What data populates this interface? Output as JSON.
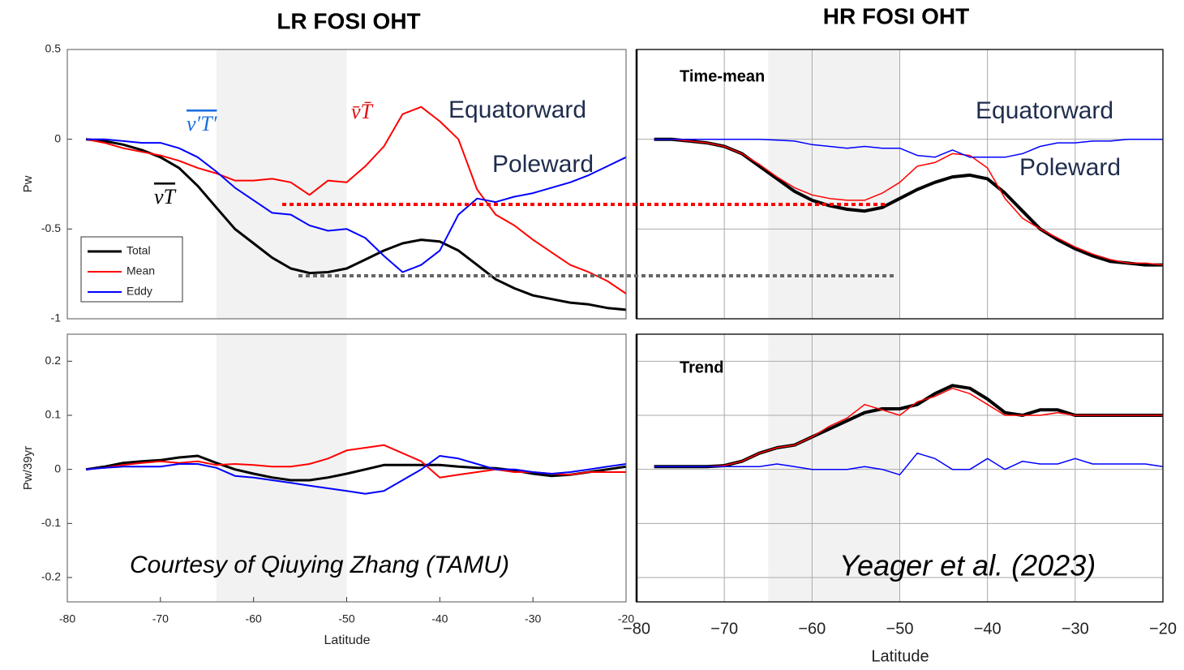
{
  "chart_data": [
    {
      "type": "line",
      "title": "LR FOSI OHT",
      "ylabel": "Pw",
      "x": [
        -78,
        -76,
        -74,
        -72,
        -70,
        -68,
        -66,
        -64,
        -62,
        -60,
        -58,
        -56,
        -54,
        -52,
        -50,
        -48,
        -46,
        -44,
        -42,
        -40,
        -38,
        -36,
        -34,
        -32,
        -30,
        -28,
        -26,
        -24,
        -22,
        -20
      ],
      "series": [
        {
          "name": "Total",
          "color": "#000000",
          "linewidth": 3,
          "values": [
            0,
            -0.01,
            -0.03,
            -0.06,
            -0.1,
            -0.16,
            -0.26,
            -0.38,
            -0.5,
            -0.58,
            -0.66,
            -0.72,
            -0.745,
            -0.74,
            -0.72,
            -0.67,
            -0.62,
            -0.58,
            -0.56,
            -0.57,
            -0.62,
            -0.7,
            -0.78,
            -0.83,
            -0.87,
            -0.89,
            -0.91,
            -0.92,
            -0.94,
            -0.95
          ]
        },
        {
          "name": "Mean",
          "color": "#ff0000",
          "linewidth": 2,
          "values": [
            0,
            -0.02,
            -0.05,
            -0.07,
            -0.09,
            -0.12,
            -0.16,
            -0.19,
            -0.23,
            -0.23,
            -0.22,
            -0.24,
            -0.31,
            -0.23,
            -0.24,
            -0.15,
            -0.04,
            0.14,
            0.18,
            0.1,
            0.0,
            -0.28,
            -0.42,
            -0.48,
            -0.56,
            -0.63,
            -0.7,
            -0.74,
            -0.79,
            -0.86
          ]
        },
        {
          "name": "Eddy",
          "color": "#0000ff",
          "linewidth": 2,
          "values": [
            0,
            0,
            -0.01,
            -0.02,
            -0.02,
            -0.05,
            -0.1,
            -0.18,
            -0.27,
            -0.34,
            -0.41,
            -0.42,
            -0.48,
            -0.51,
            -0.5,
            -0.55,
            -0.65,
            -0.74,
            -0.7,
            -0.62,
            -0.42,
            -0.33,
            -0.35,
            -0.32,
            -0.3,
            -0.27,
            -0.24,
            -0.2,
            -0.15,
            -0.1
          ]
        }
      ],
      "xlim": [
        -80,
        -20
      ],
      "ylim": [
        -1,
        0.5
      ],
      "yticks": [
        0.5,
        0,
        -0.5,
        -1
      ],
      "show_ytick_labels": true,
      "grid": false,
      "shaded_region": [
        -64,
        -50
      ],
      "legend": "lower left",
      "annotations": [
        {
          "text": "v′T′",
          "color": "#1a6fe0"
        },
        {
          "text": "v̄T̄",
          "color": "#e01010"
        },
        {
          "text": "vT",
          "color": "#000000"
        },
        {
          "text": "Equatorward",
          "color": "#1f2d4d"
        },
        {
          "text": "Poleward",
          "color": "#1f2d4d"
        }
      ]
    },
    {
      "type": "line",
      "ylabel": "Pw/39yr",
      "xlabel": "Latitude",
      "x": [
        -78,
        -76,
        -74,
        -72,
        -70,
        -68,
        -66,
        -64,
        -62,
        -60,
        -58,
        -56,
        -54,
        -52,
        -50,
        -48,
        -46,
        -44,
        -42,
        -40,
        -38,
        -36,
        -34,
        -32,
        -30,
        -28,
        -26,
        -24,
        -22,
        -20
      ],
      "series": [
        {
          "color": "#000000",
          "linewidth": 3,
          "values": [
            0,
            0.005,
            0.012,
            0.015,
            0.017,
            0.022,
            0.025,
            0.012,
            0.0,
            -0.008,
            -0.015,
            -0.02,
            -0.02,
            -0.015,
            -0.008,
            0.0,
            0.008,
            0.008,
            0.008,
            0.008,
            0.005,
            0.003,
            0.002,
            -0.002,
            -0.008,
            -0.012,
            -0.01,
            -0.005,
            0.0,
            0.005
          ]
        },
        {
          "color": "#ff0000",
          "linewidth": 2,
          "values": [
            0,
            0.003,
            0.008,
            0.012,
            0.015,
            0.012,
            0.015,
            0.008,
            0.01,
            0.008,
            0.005,
            0.005,
            0.01,
            0.02,
            0.035,
            0.04,
            0.045,
            0.03,
            0.015,
            -0.015,
            -0.01,
            -0.005,
            0.0,
            -0.005,
            -0.005,
            -0.008,
            -0.01,
            -0.005,
            -0.005,
            -0.005
          ]
        },
        {
          "color": "#0000ff",
          "linewidth": 2,
          "values": [
            0,
            0.003,
            0.005,
            0.005,
            0.005,
            0.01,
            0.01,
            0.003,
            -0.012,
            -0.015,
            -0.02,
            -0.025,
            -0.03,
            -0.035,
            -0.04,
            -0.045,
            -0.04,
            -0.02,
            0.0,
            0.025,
            0.02,
            0.01,
            0.0,
            0.0,
            -0.005,
            -0.008,
            -0.005,
            0.0,
            0.005,
            0.01
          ]
        }
      ],
      "xlim": [
        -80,
        -20
      ],
      "xticks": [
        -80,
        -70,
        -60,
        -50,
        -40,
        -30,
        -20
      ],
      "ylim": [
        -0.245,
        0.25
      ],
      "yticks": [
        0.2,
        0.1,
        0,
        -0.1,
        -0.2
      ],
      "show_ytick_labels": true,
      "grid": false,
      "shaded_region": [
        -64,
        -50
      ],
      "annotations": [
        {
          "text": "Courtesy of Qiuying Zhang (TAMU)",
          "color": "#000000"
        }
      ]
    },
    {
      "type": "line",
      "title": "HR FOSI OHT",
      "x": [
        -78,
        -76,
        -74,
        -72,
        -70,
        -68,
        -66,
        -64,
        -62,
        -60,
        -58,
        -56,
        -54,
        -52,
        -50,
        -48,
        -46,
        -44,
        -42,
        -40,
        -38,
        -36,
        -34,
        -32,
        -30,
        -28,
        -26,
        -24,
        -22,
        -20
      ],
      "series": [
        {
          "color": "#000000",
          "linewidth": 4,
          "values": [
            0,
            0,
            -0.01,
            -0.02,
            -0.04,
            -0.08,
            -0.15,
            -0.22,
            -0.29,
            -0.34,
            -0.37,
            -0.39,
            -0.4,
            -0.38,
            -0.33,
            -0.28,
            -0.24,
            -0.21,
            -0.2,
            -0.22,
            -0.3,
            -0.4,
            -0.5,
            -0.56,
            -0.61,
            -0.65,
            -0.68,
            -0.69,
            -0.7,
            -0.7
          ]
        },
        {
          "color": "#ff0000",
          "linewidth": 1.5,
          "values": [
            0,
            0,
            -0.01,
            -0.02,
            -0.04,
            -0.08,
            -0.14,
            -0.21,
            -0.27,
            -0.31,
            -0.33,
            -0.34,
            -0.34,
            -0.3,
            -0.24,
            -0.15,
            -0.13,
            -0.08,
            -0.09,
            -0.16,
            -0.33,
            -0.44,
            -0.5,
            -0.55,
            -0.6,
            -0.64,
            -0.67,
            -0.69,
            -0.69,
            -0.7
          ]
        },
        {
          "color": "#0000ff",
          "linewidth": 1.5,
          "values": [
            0,
            0,
            0,
            0,
            0,
            0,
            0,
            -0.005,
            -0.01,
            -0.03,
            -0.04,
            -0.05,
            -0.04,
            -0.05,
            -0.05,
            -0.09,
            -0.1,
            -0.06,
            -0.1,
            -0.1,
            -0.1,
            -0.08,
            -0.04,
            -0.02,
            -0.02,
            -0.01,
            -0.01,
            0,
            0,
            0
          ]
        }
      ],
      "xlim": [
        -80,
        -20
      ],
      "xticks": [
        -80,
        -70,
        -60,
        -50,
        -40,
        -30,
        -20
      ],
      "show_xtick_labels": false,
      "ylim": [
        -1,
        0.5
      ],
      "yticks": [
        0.5,
        0,
        -0.5,
        -1
      ],
      "show_ytick_labels": false,
      "grid": true,
      "shaded_region": [
        -65,
        -50
      ],
      "annotations": [
        {
          "text": "Time-mean",
          "color": "#000000"
        },
        {
          "text": "Equatorward",
          "color": "#1f2d4d"
        },
        {
          "text": "Poleward",
          "color": "#1f2d4d"
        }
      ]
    },
    {
      "type": "line",
      "xlabel": "Latitude",
      "x": [
        -78,
        -76,
        -74,
        -72,
        -70,
        -68,
        -66,
        -64,
        -62,
        -60,
        -58,
        -56,
        -54,
        -52,
        -50,
        -48,
        -46,
        -44,
        -42,
        -40,
        -38,
        -36,
        -34,
        -32,
        -30,
        -28,
        -26,
        -24,
        -22,
        -20
      ],
      "series": [
        {
          "color": "#000000",
          "linewidth": 4,
          "values": [
            0.005,
            0.005,
            0.005,
            0.005,
            0.007,
            0.015,
            0.03,
            0.04,
            0.045,
            0.06,
            0.075,
            0.09,
            0.105,
            0.112,
            0.112,
            0.12,
            0.14,
            0.155,
            0.15,
            0.13,
            0.105,
            0.1,
            0.11,
            0.11,
            0.1,
            0.1,
            0.1,
            0.1,
            0.1,
            0.1
          ]
        },
        {
          "color": "#ff0000",
          "linewidth": 1.5,
          "values": [
            0.005,
            0.005,
            0.005,
            0.005,
            0.007,
            0.015,
            0.03,
            0.04,
            0.045,
            0.06,
            0.08,
            0.095,
            0.12,
            0.11,
            0.1,
            0.125,
            0.135,
            0.15,
            0.14,
            0.12,
            0.1,
            0.1,
            0.1,
            0.105,
            0.1,
            0.1,
            0.1,
            0.1,
            0.1,
            0.1
          ]
        },
        {
          "color": "#0000ff",
          "linewidth": 1.5,
          "values": [
            0.005,
            0.005,
            0.005,
            0.005,
            0.005,
            0.005,
            0.005,
            0.01,
            0.005,
            0.0,
            0.0,
            0.0,
            0.005,
            0.0,
            -0.01,
            0.03,
            0.02,
            0.0,
            0.0,
            0.02,
            0.0,
            0.015,
            0.01,
            0.01,
            0.02,
            0.01,
            0.01,
            0.01,
            0.01,
            0.005
          ]
        }
      ],
      "xlim": [
        -80,
        -20
      ],
      "xticks": [
        {
          "value": -80,
          "label": "−80"
        },
        {
          "value": -70,
          "label": "−70"
        },
        {
          "value": -60,
          "label": "−60"
        },
        {
          "value": -50,
          "label": "−50"
        },
        {
          "value": -40,
          "label": "−40"
        },
        {
          "value": -30,
          "label": "−30"
        },
        {
          "value": -20,
          "label": "−20"
        }
      ],
      "ylim": [
        -0.245,
        0.25
      ],
      "yticks": [
        0.2,
        0.1,
        0,
        -0.1,
        -0.2
      ],
      "show_ytick_labels": false,
      "grid": true,
      "shaded_region": [
        -65,
        -50
      ],
      "annotations": [
        {
          "text": "Trend",
          "color": "#000000"
        },
        {
          "text": "Yeager et al. (2023)",
          "color": "#000000"
        }
      ]
    }
  ]
}
